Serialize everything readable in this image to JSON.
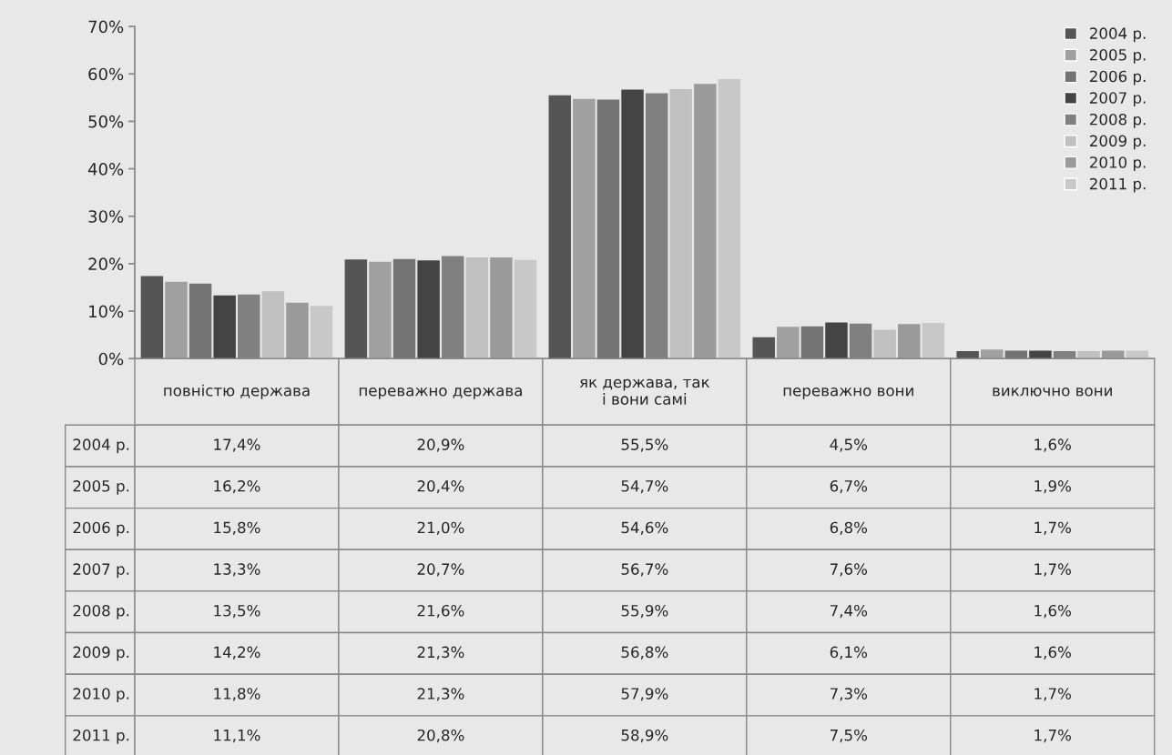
{
  "chart_data": {
    "type": "bar",
    "categories": [
      "повністю держава",
      "переважно держава",
      "як держава, так і вони самі",
      "переважно вони",
      "виключно вони"
    ],
    "series": [
      {
        "name": "2004 р.",
        "color": "#555555",
        "values": [
          17.4,
          20.9,
          55.5,
          4.5,
          1.6
        ],
        "value_labels": [
          "17,4%",
          "20,9%",
          "55,5%",
          "4,5%",
          "1,6%"
        ]
      },
      {
        "name": "2005 р.",
        "color": "#a0a0a0",
        "values": [
          16.2,
          20.4,
          54.7,
          6.7,
          1.9
        ],
        "value_labels": [
          "16,2%",
          "20,4%",
          "54,7%",
          "6,7%",
          "1,9%"
        ]
      },
      {
        "name": "2006 р.",
        "color": "#737373",
        "values": [
          15.8,
          21.0,
          54.6,
          6.8,
          1.7
        ],
        "value_labels": [
          "15,8%",
          "21,0%",
          "54,6%",
          "6,8%",
          "1,7%"
        ]
      },
      {
        "name": "2007 р.",
        "color": "#444444",
        "values": [
          13.3,
          20.7,
          56.7,
          7.6,
          1.7
        ],
        "value_labels": [
          "13,3%",
          "20,7%",
          "56,7%",
          "7,6%",
          "1,7%"
        ]
      },
      {
        "name": "2008 р.",
        "color": "#808080",
        "values": [
          13.5,
          21.6,
          55.9,
          7.4,
          1.6
        ],
        "value_labels": [
          "13,5%",
          "21,6%",
          "55,9%",
          "7,4%",
          "1,6%"
        ]
      },
      {
        "name": "2009 р.",
        "color": "#c0c0c0",
        "values": [
          14.2,
          21.3,
          56.8,
          6.1,
          1.6
        ],
        "value_labels": [
          "14,2%",
          "21,3%",
          "56,8%",
          "6,1%",
          "1,6%"
        ]
      },
      {
        "name": "2010 р.",
        "color": "#9a9a9a",
        "values": [
          11.8,
          21.3,
          57.9,
          7.3,
          1.7
        ],
        "value_labels": [
          "11,8%",
          "21,3%",
          "57,9%",
          "7,3%",
          "1,7%"
        ]
      },
      {
        "name": "2011 р.",
        "color": "#c8c8c8",
        "values": [
          11.1,
          20.8,
          58.9,
          7.5,
          1.7
        ],
        "value_labels": [
          "11,1%",
          "20,8%",
          "58,9%",
          "7,5%",
          "1,7%"
        ]
      }
    ],
    "ylim": [
      0,
      70
    ],
    "yticks": [
      {
        "value": 0,
        "label": "0%"
      },
      {
        "value": 10,
        "label": "10%"
      },
      {
        "value": 20,
        "label": "20%"
      },
      {
        "value": 30,
        "label": "30%"
      },
      {
        "value": 40,
        "label": "40%"
      },
      {
        "value": 50,
        "label": "50%"
      },
      {
        "value": 60,
        "label": "60%"
      },
      {
        "value": 70,
        "label": "70%"
      }
    ],
    "legend": "top right",
    "grid": false
  }
}
